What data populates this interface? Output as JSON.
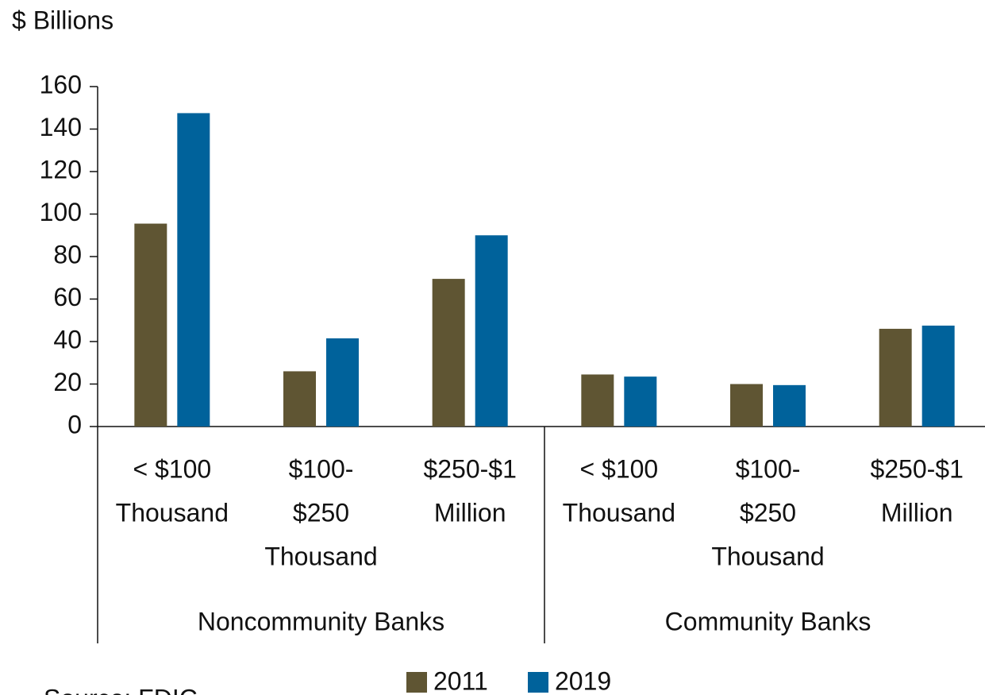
{
  "chart_data": {
    "type": "bar",
    "y_axis_label": "$ Billions",
    "source": "Source: FDIC",
    "categories": [
      [
        "< $100",
        "Thousand"
      ],
      [
        "$100-",
        "$250",
        "Thousand"
      ],
      [
        "$250-$1",
        "Million"
      ],
      [
        "< $100",
        "Thousand"
      ],
      [
        "$100-",
        "$250",
        "Thousand"
      ],
      [
        "$250-$1",
        "Million"
      ]
    ],
    "category_groups": [
      "Noncommunity Banks",
      "Community Banks"
    ],
    "series": [
      {
        "name": "2011",
        "color": "#5f5533",
        "values": [
          95.5,
          26,
          69.5,
          24.5,
          20,
          46
        ]
      },
      {
        "name": "2019",
        "color": "#00629b",
        "values": [
          147.5,
          41.5,
          90,
          23.5,
          19.5,
          47.5
        ]
      }
    ],
    "ylim": [
      0,
      160
    ],
    "yticks": [
      0,
      20,
      40,
      60,
      80,
      100,
      120,
      140,
      160
    ]
  }
}
